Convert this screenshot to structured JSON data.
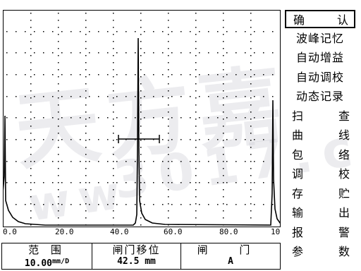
{
  "watermark": {
    "brand": "天方嘉",
    "site": "3017.c",
    "prefix": "ww"
  },
  "axis": {
    "ticks": [
      "0.0",
      "20.0",
      "40.0",
      "60.0",
      "80.0",
      "10"
    ]
  },
  "status": {
    "range_label": "范 围",
    "range_value": "10.00",
    "range_unit": "mm/D",
    "gate_shift_label": "闸门移位",
    "gate_shift_value": "42.5 mm",
    "gate_label": "闸 门",
    "gate_value": "A"
  },
  "menu": {
    "items": [
      {
        "left": "确",
        "right": "认",
        "selected": true
      },
      {
        "full": "波峰记忆"
      },
      {
        "full": "自动增益"
      },
      {
        "full": "自动调校"
      },
      {
        "full": "动态记录"
      },
      {
        "left": "扫",
        "right": "查"
      },
      {
        "left": "曲",
        "right": "线"
      },
      {
        "left": "包",
        "right": "络"
      },
      {
        "left": "调",
        "right": "校"
      },
      {
        "left": "存",
        "right": "贮"
      },
      {
        "left": "输",
        "right": "出"
      },
      {
        "left": "报",
        "right": "警"
      },
      {
        "left": "参",
        "right": "数"
      }
    ]
  }
}
